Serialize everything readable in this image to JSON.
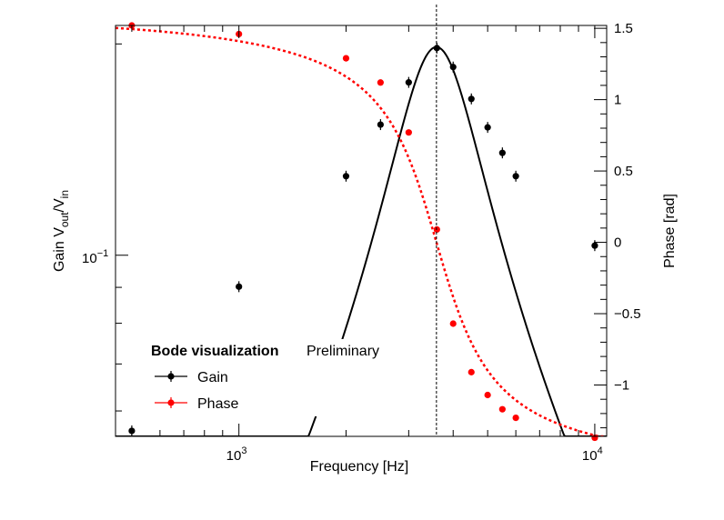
{
  "chart_data": {
    "type": "line",
    "xlabel": "Frequency [Hz]",
    "ylabel_parts": {
      "main": "Gain V",
      "sub1": "out",
      "mid": "/V",
      "sub2": "in"
    },
    "y2label": "Phase [rad]",
    "xscale": "log",
    "yscale": "log",
    "xlim": [
      450,
      10800
    ],
    "ylim": [
      0.0552,
      0.2125
    ],
    "y2lim": [
      -1.36,
      1.52
    ],
    "x_ticks": [
      {
        "value": 1000,
        "base": "10",
        "exp": "3"
      },
      {
        "value": 10000,
        "base": "10",
        "exp": "4"
      }
    ],
    "y_ticks": [
      {
        "value": 0.1,
        "base": "10",
        "exp": "−1"
      }
    ],
    "y2_ticks": [
      {
        "value": 1.5,
        "label": "1.5"
      },
      {
        "value": 1.0,
        "label": "1"
      },
      {
        "value": 0.5,
        "label": "0.5"
      },
      {
        "value": 0.0,
        "label": "0"
      },
      {
        "value": -0.5,
        "label": "−0.5"
      },
      {
        "value": -1.0,
        "label": "−1"
      }
    ],
    "resonance_frequency": 3590,
    "series": [
      {
        "name": "Gain",
        "axis": "left",
        "color": "#000000",
        "points": [
          {
            "x": 500,
            "y": 0.0562
          },
          {
            "x": 1000,
            "y": 0.0902
          },
          {
            "x": 2000,
            "y": 0.1296
          },
          {
            "x": 2500,
            "y": 0.1535
          },
          {
            "x": 3000,
            "y": 0.1763
          },
          {
            "x": 3600,
            "y": 0.1973
          },
          {
            "x": 4000,
            "y": 0.1854
          },
          {
            "x": 4500,
            "y": 0.167
          },
          {
            "x": 5000,
            "y": 0.1521
          },
          {
            "x": 5500,
            "y": 0.1399
          },
          {
            "x": 6000,
            "y": 0.1296
          },
          {
            "x": 10000,
            "y": 0.1032
          }
        ],
        "curve": {
          "peak_x": 3590,
          "peak_y": 0.198,
          "q": 1.86
        }
      },
      {
        "name": "Phase",
        "axis": "right",
        "color": "#ff0000",
        "points": [
          {
            "x": 500,
            "y": 1.52
          },
          {
            "x": 1000,
            "y": 1.46
          },
          {
            "x": 2000,
            "y": 1.29
          },
          {
            "x": 2500,
            "y": 1.12
          },
          {
            "x": 3000,
            "y": 0.77
          },
          {
            "x": 3600,
            "y": 0.09
          },
          {
            "x": 4000,
            "y": -0.57
          },
          {
            "x": 4500,
            "y": -0.91
          },
          {
            "x": 5000,
            "y": -1.07
          },
          {
            "x": 5500,
            "y": -1.17
          },
          {
            "x": 6000,
            "y": -1.23
          },
          {
            "x": 10000,
            "y": -1.37
          }
        ],
        "curve": {
          "center_x": 3590,
          "q": 1.86
        }
      }
    ],
    "legend": {
      "title": "Bode visualization",
      "subtitle": "Preliminary",
      "position": "bottom-left",
      "entries": [
        {
          "label": "Gain",
          "color": "#000000"
        },
        {
          "label": "Phase",
          "color": "#ff0000"
        }
      ]
    }
  }
}
